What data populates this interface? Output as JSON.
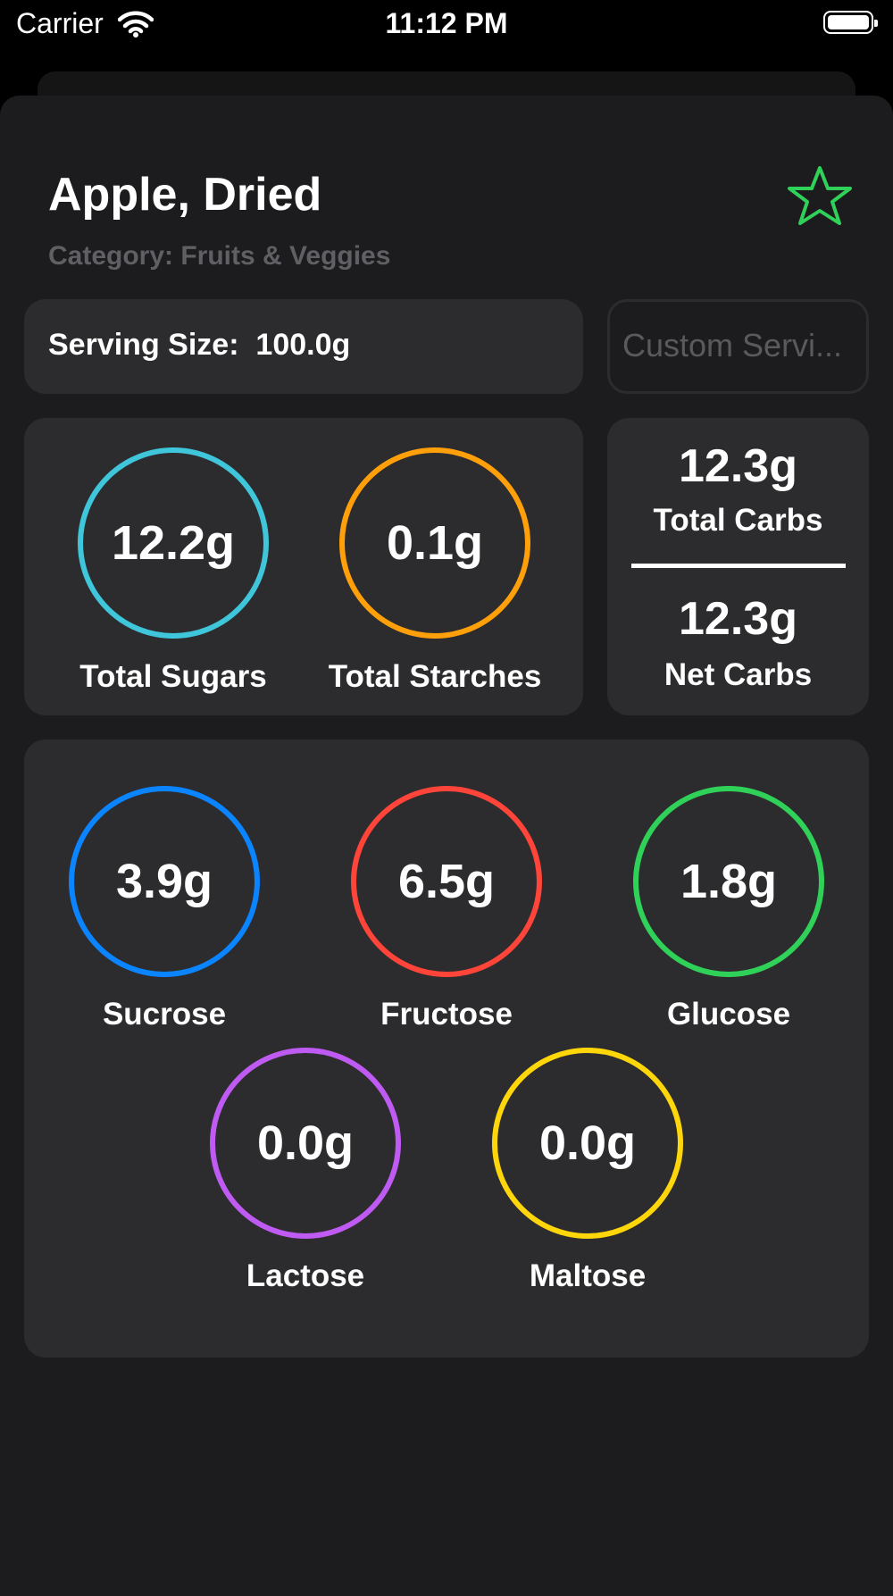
{
  "status_bar": {
    "carrier": "Carrier",
    "time": "11:12 PM"
  },
  "food": {
    "name": "Apple, Dried",
    "category": "Category: Fruits & Veggies",
    "favorite_icon": "star-outline-icon"
  },
  "serving": {
    "label": "Serving Size:  100.0g",
    "custom_placeholder": "Custom Servi..."
  },
  "totals": {
    "sugars": {
      "value": "12.2g",
      "label": "Total Sugars",
      "color": "#3fc6da"
    },
    "starches": {
      "value": "0.1g",
      "label": "Total Starches",
      "color": "#ff9f0a"
    }
  },
  "carbs": {
    "total_value": "12.3g",
    "total_label": "Total Carbs",
    "net_value": "12.3g",
    "net_label": "Net Carbs"
  },
  "sugar_breakdown": [
    {
      "value": "3.9g",
      "label": "Sucrose",
      "color": "#0a84ff"
    },
    {
      "value": "6.5g",
      "label": "Fructose",
      "color": "#ff453a"
    },
    {
      "value": "1.8g",
      "label": "Glucose",
      "color": "#30d158"
    },
    {
      "value": "0.0g",
      "label": "Lactose",
      "color": "#bf5af2"
    },
    {
      "value": "0.0g",
      "label": "Maltose",
      "color": "#ffd60a"
    }
  ],
  "colors": {
    "favorite": "#30d158",
    "card": "#2c2c2e",
    "sheet": "#1c1c1e"
  }
}
